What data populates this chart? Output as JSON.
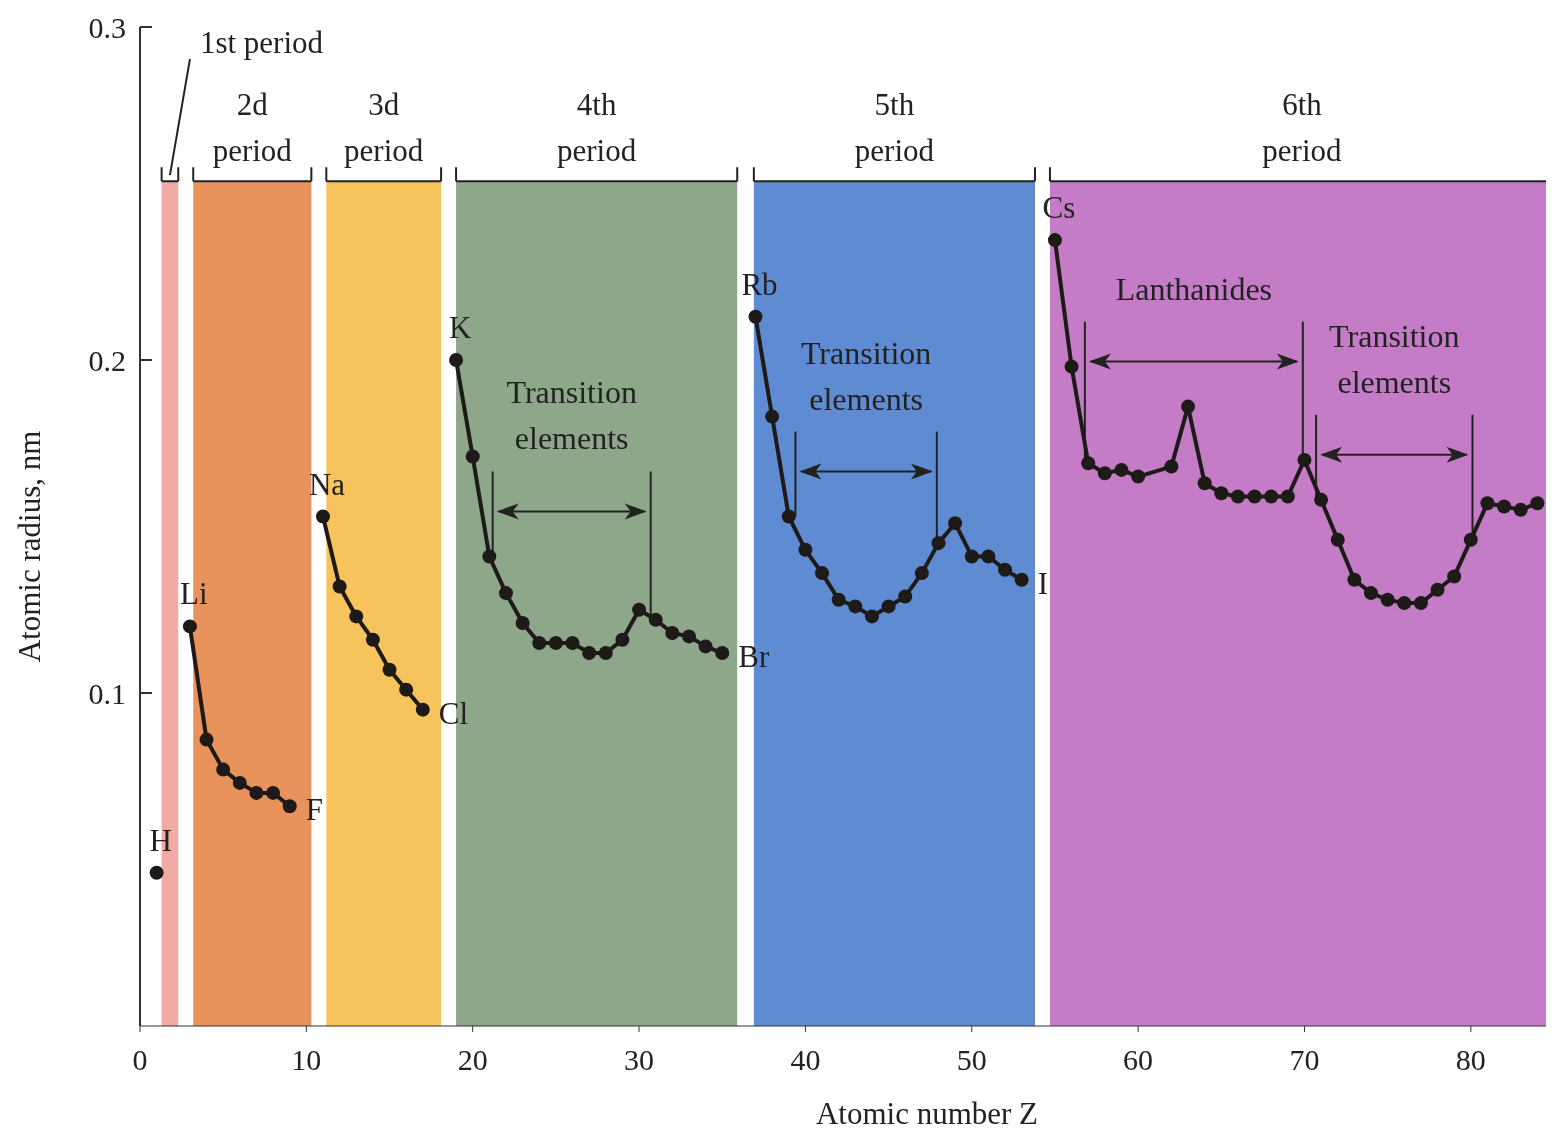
{
  "chart_data": {
    "type": "line",
    "xlabel": "Atomic number Z",
    "ylabel": "Atomic radius, nm",
    "xlim": [
      0,
      85
    ],
    "ylim": [
      0,
      0.3
    ],
    "xticks": [
      0,
      10,
      20,
      30,
      40,
      50,
      60,
      70,
      80
    ],
    "yticks": [
      0.1,
      0.2,
      0.3
    ],
    "grid": false,
    "marker": "circle",
    "line_style": "solid",
    "series": [
      {
        "color": "#1e1a18",
        "x": [
          1,
          2,
          3,
          4,
          5,
          6,
          7,
          8,
          9,
          10,
          11,
          12,
          13,
          14,
          15,
          16,
          17,
          18,
          19,
          20,
          21,
          22,
          23,
          24,
          25,
          26,
          27,
          28,
          29,
          30,
          31,
          32,
          33,
          34,
          35,
          36,
          37,
          38,
          39,
          40,
          41,
          42,
          43,
          44,
          45,
          46,
          47,
          48,
          49,
          50,
          51,
          52,
          53,
          54,
          55,
          56,
          57,
          58,
          59,
          60,
          62,
          63,
          64,
          65,
          66,
          67,
          68,
          69,
          70,
          71,
          72,
          73,
          74,
          75,
          76,
          77,
          78,
          79,
          80,
          81,
          82,
          83,
          84
        ],
        "values": [
          0.046,
          null,
          0.12,
          0.086,
          0.077,
          0.073,
          0.07,
          0.07,
          0.066,
          null,
          0.153,
          0.132,
          0.123,
          0.116,
          0.107,
          0.101,
          0.095,
          null,
          0.2,
          0.171,
          0.141,
          0.13,
          0.121,
          0.115,
          0.115,
          0.115,
          0.112,
          0.112,
          0.116,
          0.125,
          0.122,
          0.118,
          0.117,
          0.114,
          0.112,
          null,
          0.213,
          0.183,
          0.153,
          0.143,
          0.136,
          0.128,
          0.126,
          0.123,
          0.126,
          0.129,
          0.136,
          0.145,
          0.151,
          0.141,
          0.141,
          0.137,
          0.134,
          null,
          0.236,
          0.198,
          0.169,
          0.166,
          0.167,
          0.165,
          0.168,
          0.186,
          0.163,
          0.16,
          0.159,
          0.159,
          0.159,
          0.159,
          0.17,
          0.158,
          0.146,
          0.134,
          0.13,
          0.128,
          0.127,
          0.127,
          0.131,
          0.135,
          0.146,
          0.157,
          0.156,
          0.155,
          0.157
        ]
      }
    ],
    "bands": [
      {
        "axis": "x",
        "from": 1.3,
        "to": 2.3,
        "label": "1st period",
        "color": "#f2aaa4"
      },
      {
        "axis": "x",
        "from": 3.2,
        "to": 10.3,
        "label": "2d period",
        "color": "#e8925c"
      },
      {
        "axis": "x",
        "from": 11.2,
        "to": 18.1,
        "label": "3d period",
        "color": "#f6c35c"
      },
      {
        "axis": "x",
        "from": 19.0,
        "to": 35.9,
        "label": "4th period",
        "color": "#8ea68a"
      },
      {
        "axis": "x",
        "from": 36.9,
        "to": 53.8,
        "label": "5th period",
        "color": "#5f8bd2"
      },
      {
        "axis": "x",
        "from": 54.7,
        "to": 85,
        "label": "6th period",
        "color": "#c57cc6"
      }
    ],
    "ref_lines": [
      {
        "axis": "x",
        "value": 21.2,
        "label": null
      },
      {
        "axis": "x",
        "value": 30.7,
        "label": null
      },
      {
        "axis": "x",
        "value": 39.4,
        "label": null
      },
      {
        "axis": "x",
        "value": 47.9,
        "label": null
      },
      {
        "axis": "x",
        "value": 56.8,
        "label": null
      },
      {
        "axis": "x",
        "value": 69.9,
        "label": null
      },
      {
        "axis": "x",
        "value": 70.7,
        "label": null
      },
      {
        "axis": "x",
        "value": 80.1,
        "label": null
      }
    ],
    "annotations": [
      {
        "text": "H",
        "x": 1,
        "y": 0.046
      },
      {
        "text": "Li",
        "x": 3,
        "y": 0.12
      },
      {
        "text": "F",
        "x": 9,
        "y": 0.066
      },
      {
        "text": "Na",
        "x": 11,
        "y": 0.153
      },
      {
        "text": "Cl",
        "x": 17,
        "y": 0.095
      },
      {
        "text": "K",
        "x": 19,
        "y": 0.2
      },
      {
        "text": "Br",
        "x": 35,
        "y": 0.112
      },
      {
        "text": "Rb",
        "x": 37,
        "y": 0.213
      },
      {
        "text": "I",
        "x": 53,
        "y": 0.134
      },
      {
        "text": "Cs",
        "x": 55,
        "y": 0.236
      },
      "Transition elements",
      "Transition elements",
      "Lanthanides",
      "Transition elements"
    ]
  }
}
